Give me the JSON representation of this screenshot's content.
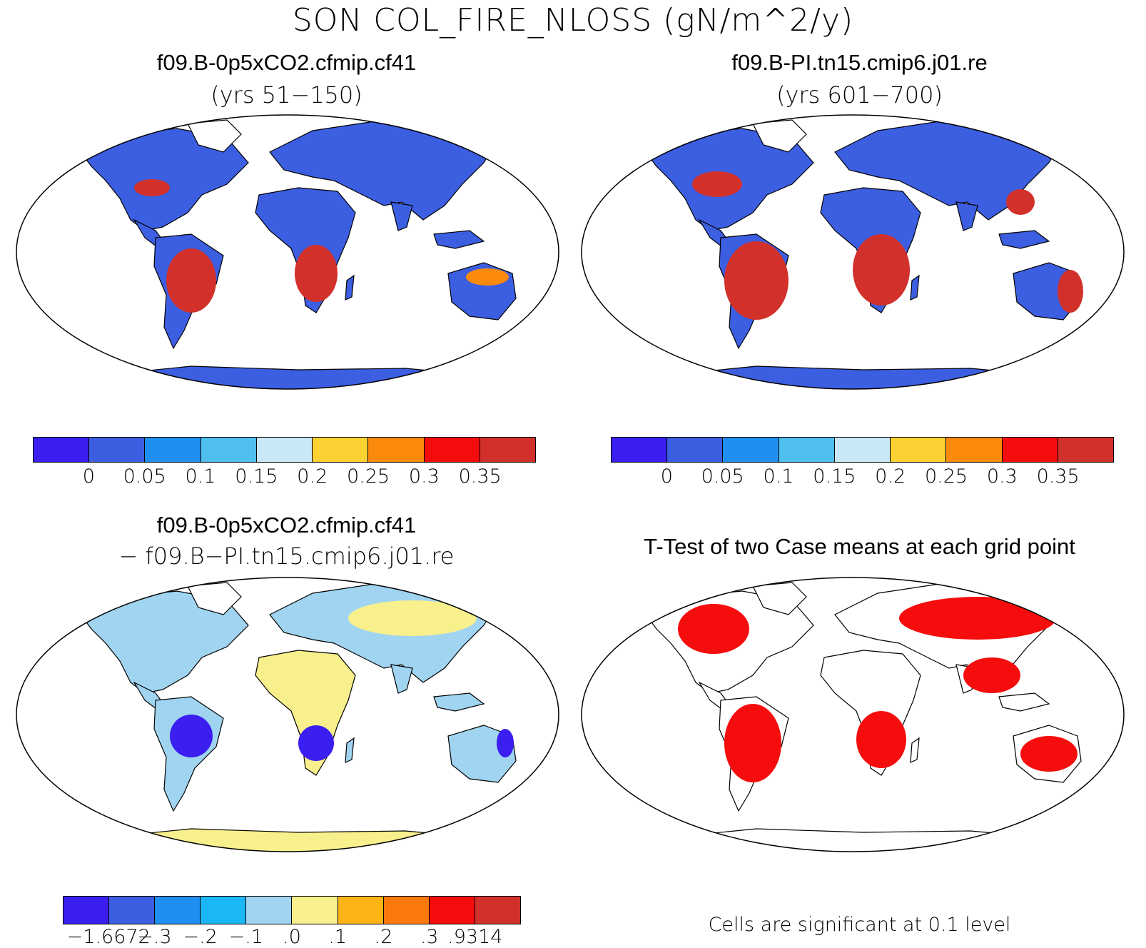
{
  "title": "SON COL_FIRE_NLOSS (gN/m^2/y)",
  "panels": {
    "top_left": {
      "title": "f09.B-0p5xCO2.cfmip.cf41",
      "subtitle": "(yrs 51−150)"
    },
    "top_right": {
      "title": "f09.B-PI.tn15.cmip6.j01.re",
      "subtitle": "(yrs 601−700)"
    },
    "bottom_left": {
      "title": "f09.B-0p5xCO2.cfmip.cf41",
      "subtitle": "− f09.B−PI.tn15.cmip6.j01.re"
    },
    "bottom_right": {
      "title": "T-Test of two Case means at each grid point",
      "note": "Cells are significant at 0.1 level"
    }
  },
  "colorbars": {
    "abs": {
      "colors": [
        "#3b1ef0",
        "#3c5ee0",
        "#1f8ff2",
        "#4fbfee",
        "#c8e8f6",
        "#fbd234",
        "#fc8a0c",
        "#f50d0d",
        "#d2302a"
      ],
      "labels": [
        "0",
        "0.05",
        "0.1",
        "0.15",
        "0.2",
        "0.25",
        "0.3",
        "0.35"
      ]
    },
    "diff": {
      "colors": [
        "#3b1ef0",
        "#3c5ee0",
        "#1f8ff2",
        "#1bb7f4",
        "#a0d4f0",
        "#f8f08c",
        "#fbb414",
        "#fc7a0c",
        "#f50d0d",
        "#d2302a"
      ],
      "labels": [
        "−1.6672",
        "−.3",
        "−.2",
        "−.1",
        ".0",
        ".1",
        ".2",
        ".3",
        ".9314"
      ]
    }
  },
  "map_colors": {
    "land_low": "#3c5ee0",
    "land_high": "#d2302a",
    "land_mid": "#fc8a0c",
    "diff_neutral": "#f8f08c",
    "diff_light": "#a0d4f0",
    "diff_neg": "#3b1ef0",
    "significant": "#f50d0d"
  }
}
